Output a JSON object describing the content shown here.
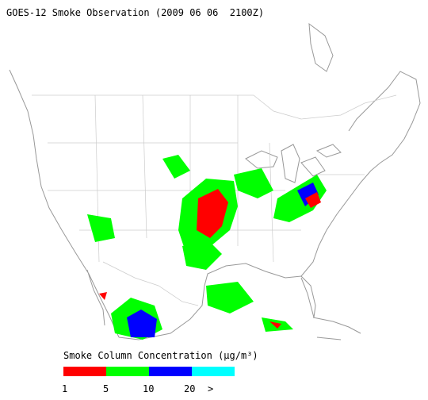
{
  "title": "GOES-12 Smoke Observation (2009 06 06  2100Z)",
  "legend": {
    "title": "Smoke Column Concentration (μg/m³)",
    "colors": [
      "#ff0000",
      "#00ff00",
      "#0000ff",
      "#00ffff"
    ],
    "labels": [
      "1",
      "5",
      "10",
      "20",
      ">"
    ]
  }
}
